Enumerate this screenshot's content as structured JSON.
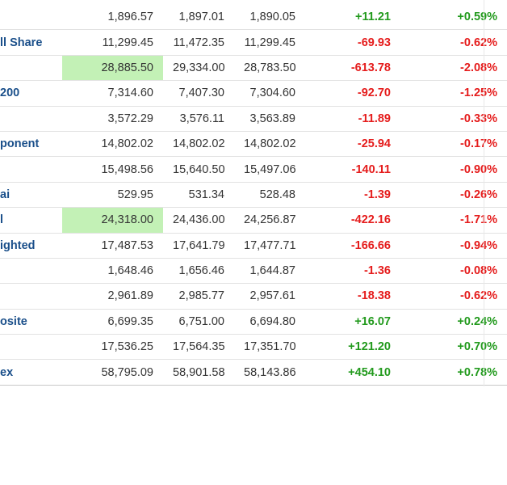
{
  "colors": {
    "positive": "#229a1d",
    "negative": "#e51c1c",
    "name_link": "#1a4f8a",
    "highlight": "#c3f1b6"
  },
  "rows": [
    {
      "name": "",
      "last": "1,896.57",
      "high": "1,897.01",
      "low": "1,890.05",
      "chg": "+11.21",
      "pct": "+0.59%",
      "dir": "pos",
      "highlight": false
    },
    {
      "name": "ll Share",
      "last": "11,299.45",
      "high": "11,472.35",
      "low": "11,299.45",
      "chg": "-69.93",
      "pct": "-0.62%",
      "dir": "neg",
      "highlight": false
    },
    {
      "name": "",
      "last": "28,885.50",
      "high": "29,334.00",
      "low": "28,783.50",
      "chg": "-613.78",
      "pct": "-2.08%",
      "dir": "neg",
      "highlight": true
    },
    {
      "name": "200",
      "last": "7,314.60",
      "high": "7,407.30",
      "low": "7,304.60",
      "chg": "-92.70",
      "pct": "-1.25%",
      "dir": "neg",
      "highlight": false
    },
    {
      "name": "",
      "last": "3,572.29",
      "high": "3,576.11",
      "low": "3,563.89",
      "chg": "-11.89",
      "pct": "-0.33%",
      "dir": "neg",
      "highlight": false
    },
    {
      "name": "ponent",
      "last": "14,802.02",
      "high": "14,802.02",
      "low": "14,802.02",
      "chg": "-25.94",
      "pct": "-0.17%",
      "dir": "neg",
      "highlight": false
    },
    {
      "name": "",
      "last": "15,498.56",
      "high": "15,640.50",
      "low": "15,497.06",
      "chg": "-140.11",
      "pct": "-0.90%",
      "dir": "neg",
      "highlight": false
    },
    {
      "name": "ai",
      "last": "529.95",
      "high": "531.34",
      "low": "528.48",
      "chg": "-1.39",
      "pct": "-0.26%",
      "dir": "neg",
      "highlight": false
    },
    {
      "name": "l",
      "last": "24,318.00",
      "high": "24,436.00",
      "low": "24,256.87",
      "chg": "-422.16",
      "pct": "-1.71%",
      "dir": "neg",
      "highlight": true
    },
    {
      "name": "ighted",
      "last": "17,487.53",
      "high": "17,641.79",
      "low": "17,477.71",
      "chg": "-166.66",
      "pct": "-0.94%",
      "dir": "neg",
      "highlight": false
    },
    {
      "name": "",
      "last": "1,648.46",
      "high": "1,656.46",
      "low": "1,644.87",
      "chg": "-1.36",
      "pct": "-0.08%",
      "dir": "neg",
      "highlight": false
    },
    {
      "name": "",
      "last": "2,961.89",
      "high": "2,985.77",
      "low": "2,957.61",
      "chg": "-18.38",
      "pct": "-0.62%",
      "dir": "neg",
      "highlight": false
    },
    {
      "name": "osite",
      "last": "6,699.35",
      "high": "6,751.00",
      "low": "6,694.80",
      "chg": "+16.07",
      "pct": "+0.24%",
      "dir": "pos",
      "highlight": false
    },
    {
      "name": "",
      "last": "17,536.25",
      "high": "17,564.35",
      "low": "17,351.70",
      "chg": "+121.20",
      "pct": "+0.70%",
      "dir": "pos",
      "highlight": false
    },
    {
      "name": "ex",
      "last": "58,795.09",
      "high": "58,901.58",
      "low": "58,143.86",
      "chg": "+454.10",
      "pct": "+0.78%",
      "dir": "pos",
      "highlight": false
    }
  ]
}
